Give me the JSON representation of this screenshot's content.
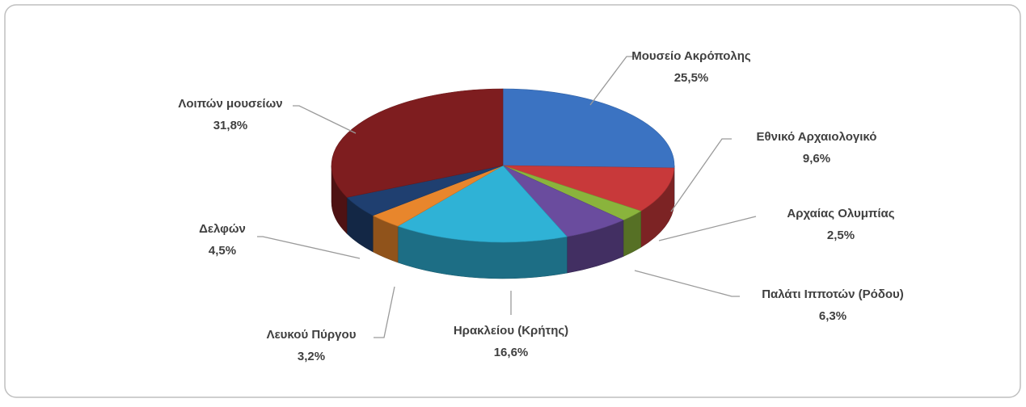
{
  "chart_data": {
    "type": "pie",
    "categories": [
      "Μουσείο Ακρόπολης",
      "Εθνικό Αρχαιολογικό",
      "Αρχαίας Ολυμπίας",
      "Παλάτι Ιπποτών (Ρόδου)",
      "Ηρακλείου (Κρήτης)",
      "Λευκού Πύργου",
      "Δελφών",
      "Λοιπών μουσείων"
    ],
    "values": [
      25.5,
      9.6,
      2.5,
      6.3,
      16.6,
      3.2,
      4.5,
      31.8
    ],
    "value_labels": [
      "25,5%",
      "9,6%",
      "2,5%",
      "6,3%",
      "16,6%",
      "3,2%",
      "4,5%",
      "31,8%"
    ],
    "colors": [
      "#3b73c2",
      "#c8393a",
      "#8ab43c",
      "#6a4c9e",
      "#2fb2d6",
      "#e8862c",
      "#1f3f70",
      "#7e1d1f"
    ]
  }
}
